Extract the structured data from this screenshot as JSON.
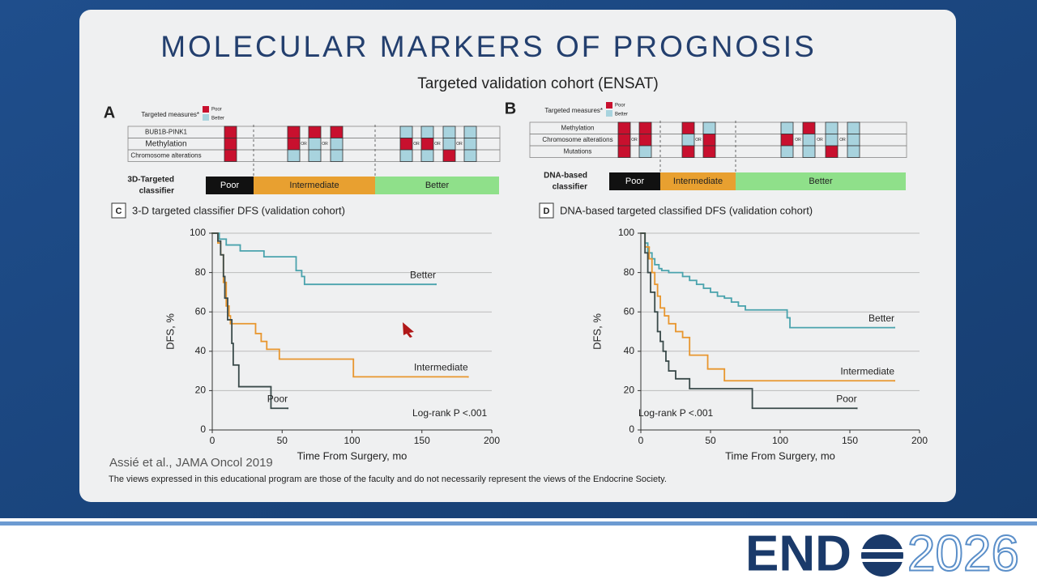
{
  "slide": {
    "title": "MOLECULAR MARKERS OF PROGNOSIS",
    "subtitle": "Targeted validation cohort (ENSAT)",
    "citation": "Assié et al., JAMA Oncol 2019",
    "disclaimer": "The views expressed in this educational program are those of the faculty and do not necessarily represent the views of the Endocrine Society."
  },
  "panel_a": {
    "letter": "A",
    "legend_title": "Targeted measures*",
    "legend_poor": "Poor",
    "legend_better": "Better",
    "rows": [
      "BUB1B-PINK1",
      "Methylation",
      "Chromosome alterations"
    ],
    "or": "OR",
    "classifier_label": [
      "3D-Targeted",
      "classifier"
    ],
    "classes": [
      "Poor",
      "Intermediate",
      "Better"
    ]
  },
  "panel_b": {
    "letter": "B",
    "legend_title": "Targeted measures*",
    "legend_poor": "Poor",
    "legend_better": "Better",
    "rows": [
      "Methylation",
      "Chromosome alterations",
      "Mutations"
    ],
    "or": "OR",
    "classifier_label": [
      "DNA-based",
      "classifier"
    ],
    "classes": [
      "Poor",
      "Intermediate",
      "Better"
    ]
  },
  "logo": {
    "end": "END",
    "year": "2026"
  },
  "chart_data": [
    {
      "type": "line",
      "step": "post",
      "panel": "C",
      "title": "3-D targeted classifier DFS (validation cohort)",
      "xlabel": "Time From Surgery, mo",
      "ylabel": "DFS, %",
      "annotation": "Log-rank P <.001",
      "xlim": [
        0,
        200
      ],
      "ylim": [
        0,
        100
      ],
      "xticks": [
        0,
        50,
        100,
        150,
        200
      ],
      "yticks": [
        0,
        20,
        40,
        60,
        80,
        100
      ],
      "grid": true,
      "series": [
        {
          "name": "Better",
          "color": "#4aa3ad",
          "x": [
            0,
            5,
            10,
            20,
            37,
            60,
            64,
            66,
            160
          ],
          "values": [
            100,
            97,
            94,
            91,
            88,
            81,
            78,
            74,
            74
          ]
        },
        {
          "name": "Intermediate",
          "color": "#e8962e",
          "x": [
            0,
            4,
            6,
            8,
            10,
            12,
            13,
            31,
            35,
            39,
            48,
            101,
            183
          ],
          "values": [
            100,
            95,
            89,
            75,
            63,
            58,
            54,
            49,
            45,
            41,
            36,
            27,
            27
          ]
        },
        {
          "name": "Poor",
          "color": "#3a4a4a",
          "x": [
            0,
            4,
            6,
            8,
            9,
            11,
            14,
            15,
            19,
            42,
            54
          ],
          "values": [
            100,
            96,
            89,
            78,
            67,
            56,
            44,
            33,
            22,
            11,
            11
          ]
        }
      ]
    },
    {
      "type": "line",
      "step": "post",
      "panel": "D",
      "title": "DNA-based targeted classified DFS (validation cohort)",
      "xlabel": "Time From Surgery, mo",
      "ylabel": "DFS, %",
      "annotation": "Log-rank P <.001",
      "xlim": [
        0,
        200
      ],
      "ylim": [
        0,
        100
      ],
      "xticks": [
        0,
        50,
        100,
        150,
        200
      ],
      "yticks": [
        0,
        20,
        40,
        60,
        80,
        100
      ],
      "grid": true,
      "series": [
        {
          "name": "Better",
          "color": "#4aa3ad",
          "x": [
            0,
            3,
            5,
            8,
            10,
            13,
            15,
            20,
            30,
            35,
            40,
            45,
            50,
            55,
            60,
            65,
            70,
            75,
            105,
            107,
            182
          ],
          "values": [
            100,
            95,
            90,
            87,
            84,
            82,
            81,
            80,
            78,
            76,
            74,
            72,
            70,
            68,
            67,
            65,
            63,
            61,
            57,
            52,
            52
          ]
        },
        {
          "name": "Intermediate",
          "color": "#e8962e",
          "x": [
            0,
            3,
            6,
            8,
            10,
            12,
            14,
            17,
            20,
            25,
            30,
            35,
            48,
            60,
            182
          ],
          "values": [
            100,
            93,
            87,
            80,
            74,
            68,
            62,
            58,
            54,
            50,
            47,
            38,
            31,
            25,
            25
          ]
        },
        {
          "name": "Poor",
          "color": "#3a4a4a",
          "x": [
            0,
            3,
            5,
            7,
            10,
            12,
            14,
            16,
            18,
            20,
            25,
            35,
            80,
            155
          ],
          "values": [
            100,
            90,
            80,
            70,
            60,
            50,
            45,
            40,
            35,
            30,
            26,
            21,
            11,
            11
          ]
        }
      ]
    }
  ]
}
